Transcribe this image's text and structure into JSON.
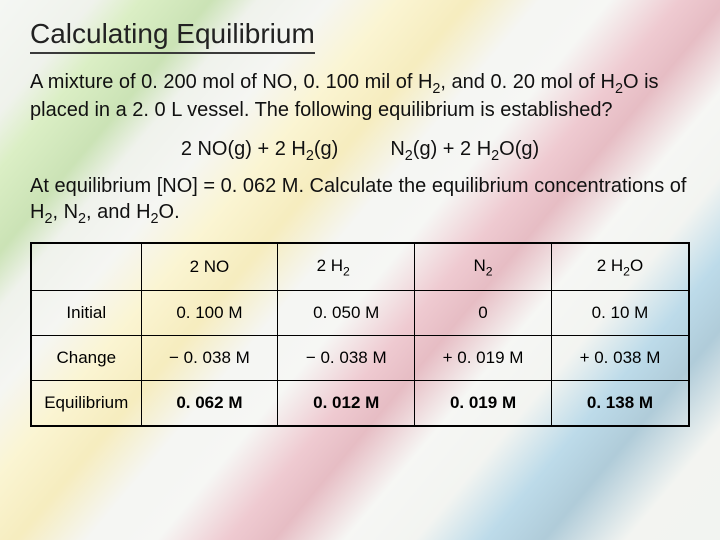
{
  "title": "Calculating Equilibrium",
  "problem_line1": "A mixture of 0. 200 mol of NO, 0. 100 mil of H",
  "problem_line1b": ", and 0. 20 mol of H",
  "problem_line1c": "O is placed in a 2. 0 L vessel.  The following equilibrium is established?",
  "equation": {
    "left1": "2 NO(g) + 2 H",
    "left2": "(g)",
    "right1": "N",
    "right2": "(g) + 2 H",
    "right3": "O(g)"
  },
  "problem2a": "At equilibrium [NO] = 0. 062 M.  Calculate the equilibrium concentrations of H",
  "problem2b": ", N",
  "problem2c": ", and H",
  "problem2d": "O.",
  "table": {
    "headers": {
      "blank": "",
      "c1": "2 NO",
      "c2a": "2 H",
      "c3a": "N",
      "c4a": "2 H",
      "c4b": "O"
    },
    "rows": {
      "initial": {
        "label": "Initial",
        "v1": "0. 100 M",
        "v2": "0. 050 M",
        "v3": "0",
        "v4": "0. 10 M"
      },
      "change": {
        "label": "Change",
        "v1": "− 0. 038 M",
        "v2": "− 0. 038 M",
        "v3": "+ 0. 019 M",
        "v4": "+ 0. 038 M"
      },
      "equil": {
        "label": "Equilibrium",
        "v1": "0. 062 M",
        "v2": "0. 012 M",
        "v3": "0. 019 M",
        "v4": "0. 138 M"
      }
    }
  },
  "sub2": "2"
}
